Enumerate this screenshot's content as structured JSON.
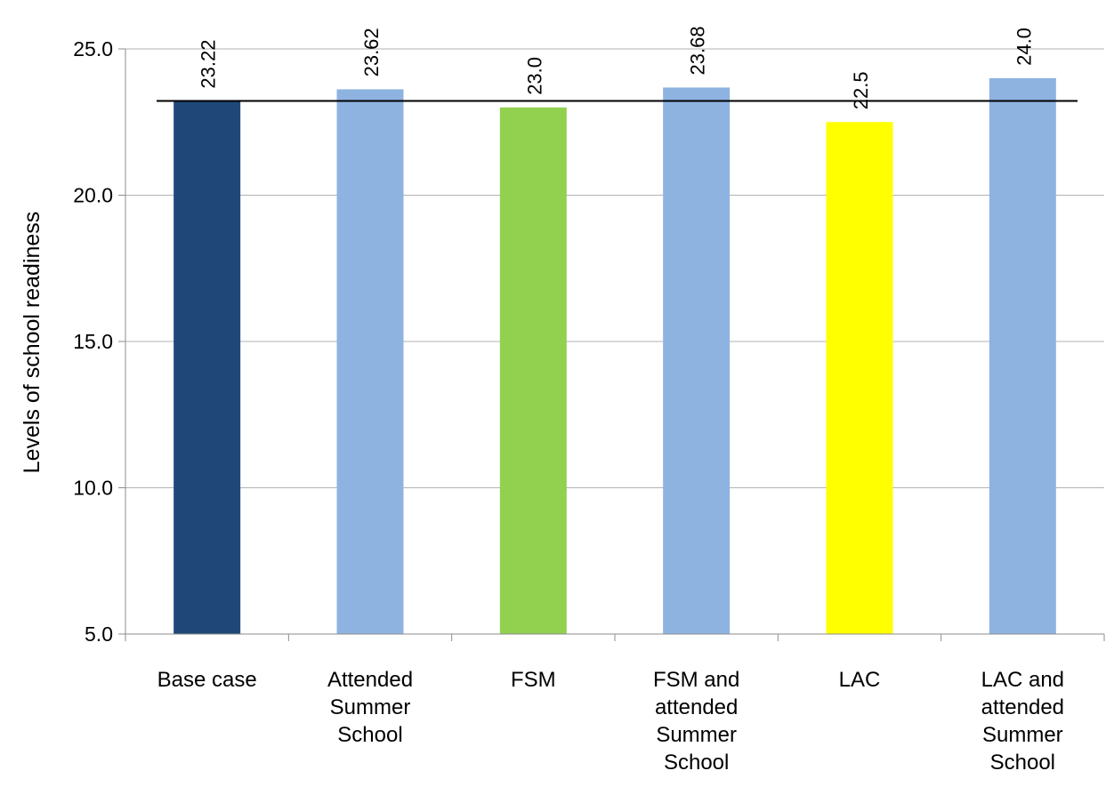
{
  "chart_data": {
    "type": "bar",
    "title": "",
    "xlabel": "",
    "ylabel": "Levels of school readiness",
    "ylim": [
      5.0,
      25.0
    ],
    "yticks": [
      "5.0",
      "10.0",
      "15.0",
      "20.0",
      "25.0"
    ],
    "ytick_values": [
      5,
      10,
      15,
      20,
      25
    ],
    "grid": true,
    "legend": "none",
    "categories": [
      [
        "Base case"
      ],
      [
        "Attended",
        "Summer",
        "School"
      ],
      [
        "FSM"
      ],
      [
        "FSM and",
        "attended",
        "Summer",
        "School"
      ],
      [
        "LAC"
      ],
      [
        "LAC and",
        "attended",
        "Summer",
        "School"
      ]
    ],
    "values": [
      23.22,
      23.62,
      23.0,
      23.68,
      22.5,
      24.0
    ],
    "data_labels": [
      "23.22",
      "23.62",
      "23.0",
      "23.68",
      "22.5",
      "24.0"
    ],
    "colors": [
      "#1f4878",
      "#8eb3e1",
      "#92d050",
      "#8eb3e1",
      "#ffff00",
      "#8eb3e1"
    ],
    "reference_line": 23.22
  }
}
